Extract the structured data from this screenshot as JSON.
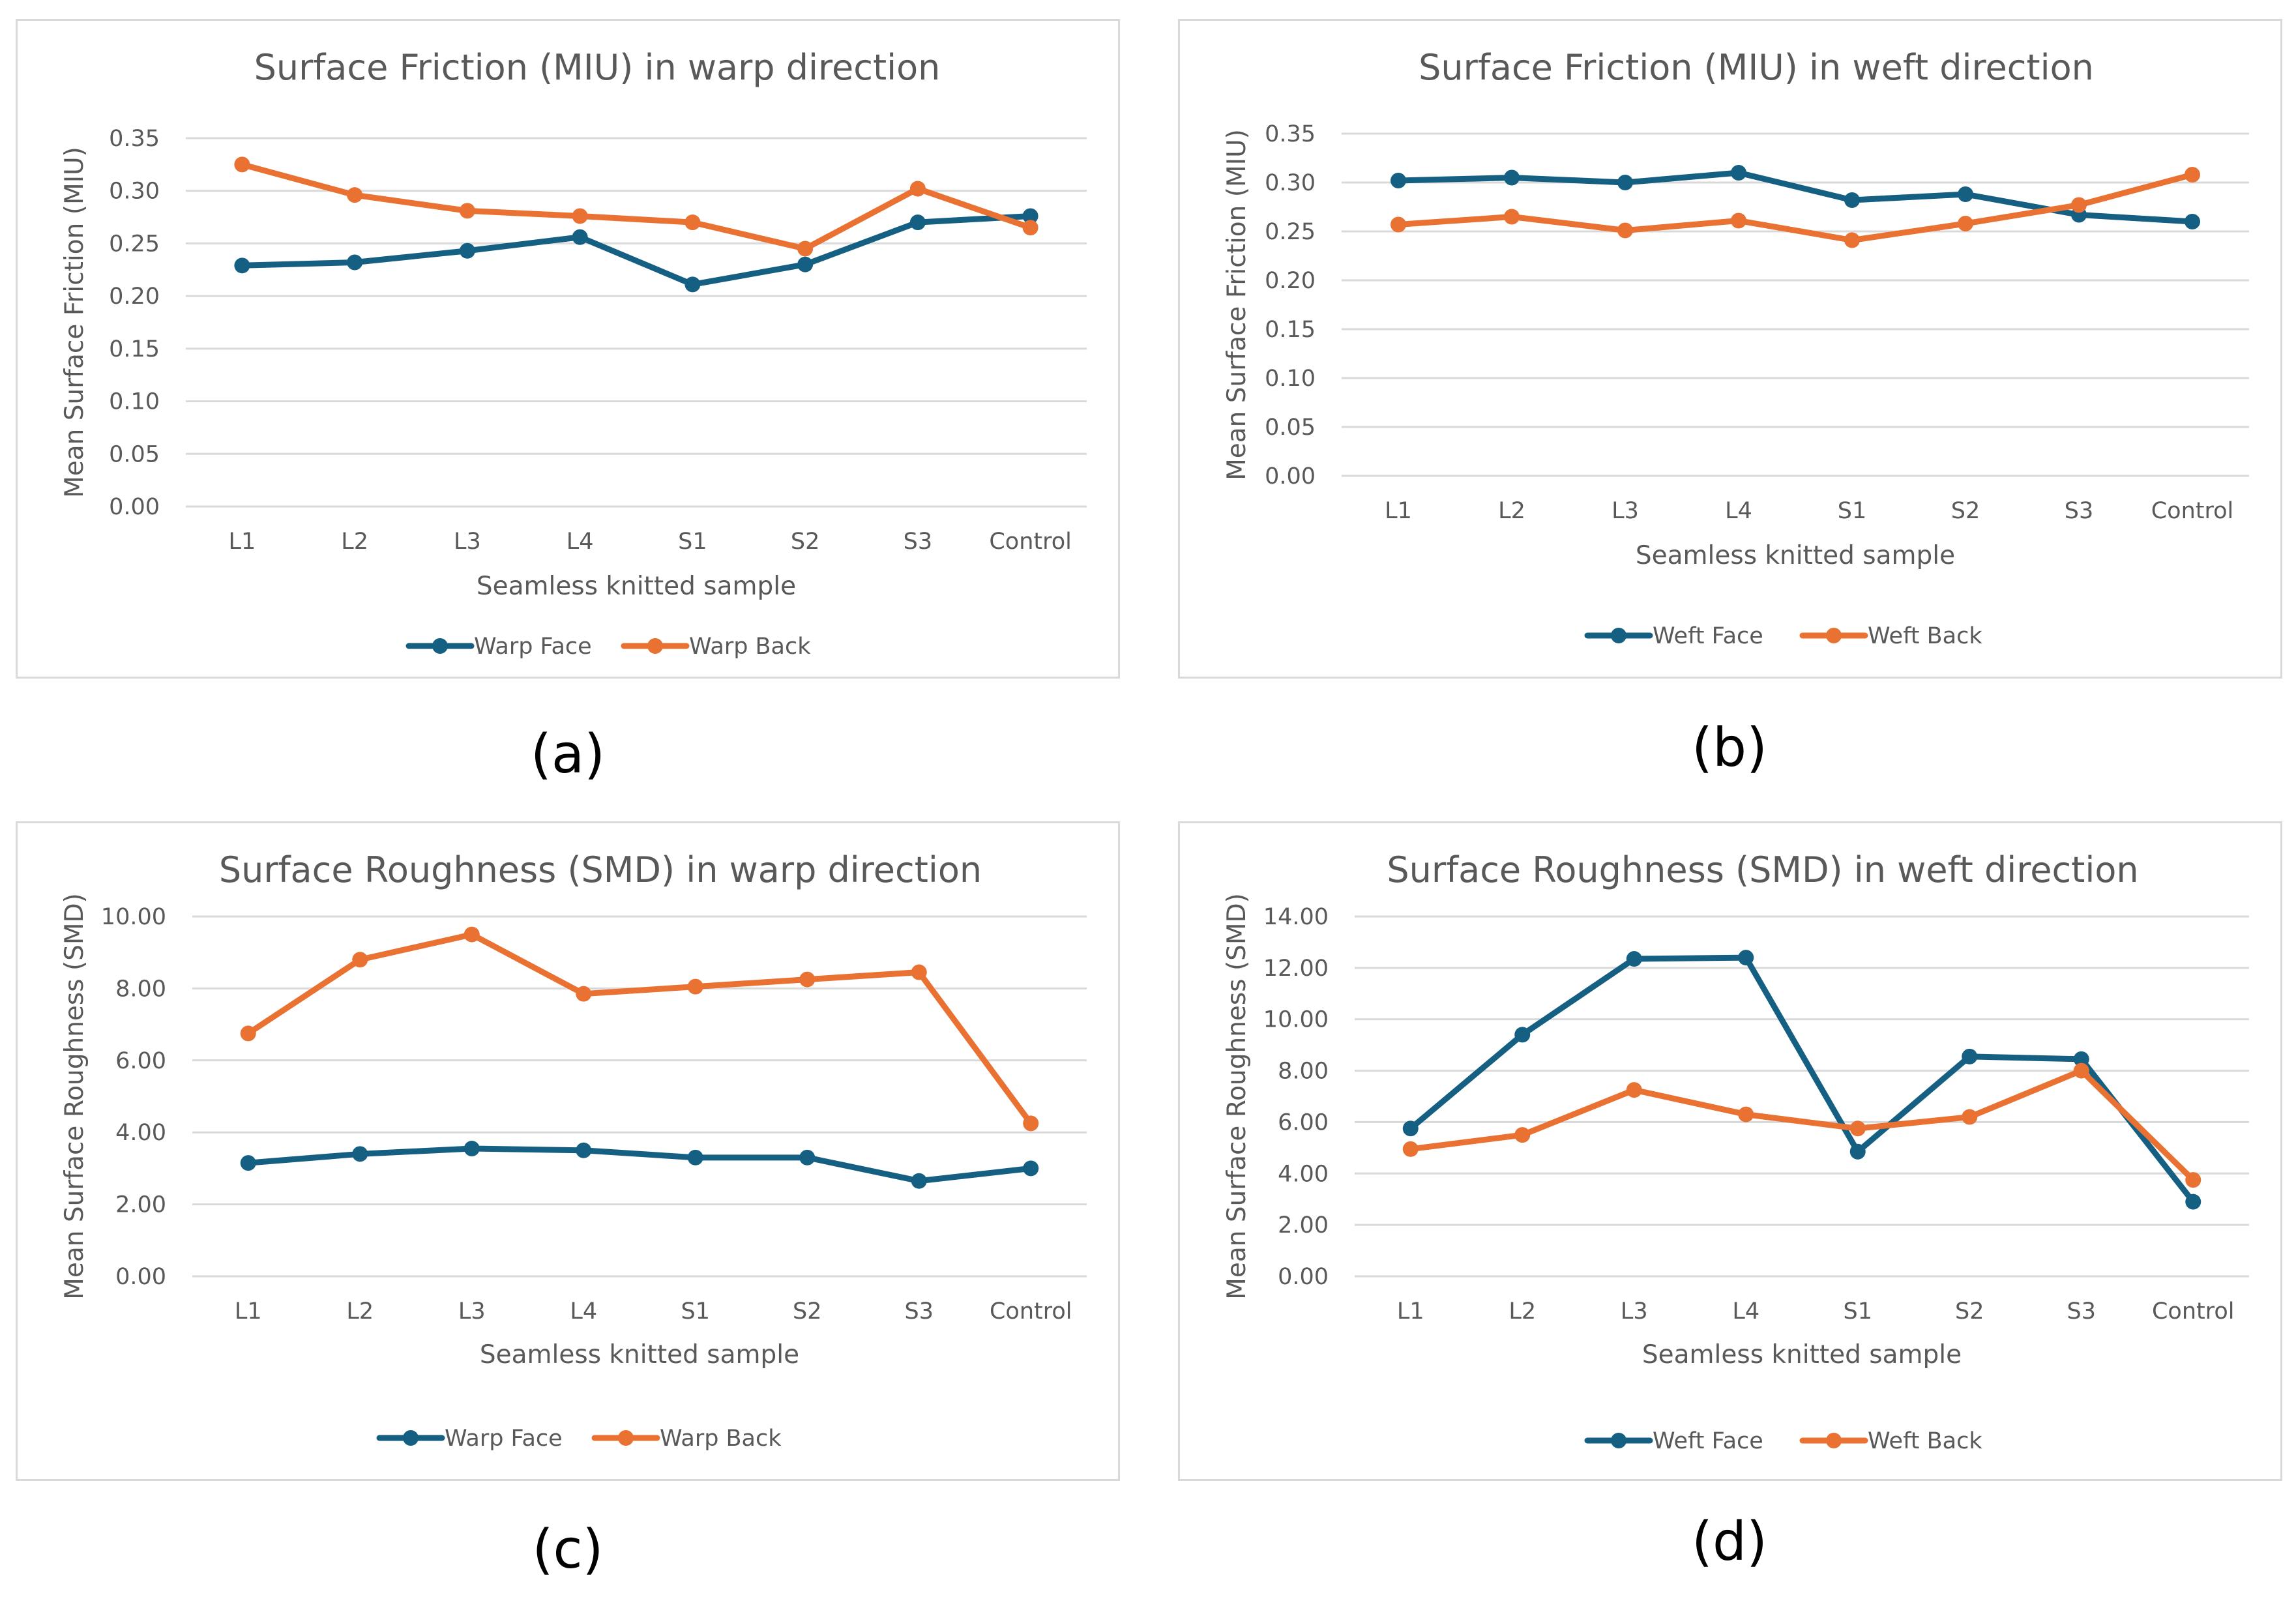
{
  "chart_data": [
    {
      "type": "line",
      "title": "Surface Friction (MIU) in warp direction",
      "xlabel": "Seamless knitted sample",
      "ylabel": "Mean Surface Friction (MIU)",
      "categories": [
        "L1",
        "L2",
        "L3",
        "L4",
        "S1",
        "S2",
        "S3",
        "Control"
      ],
      "ylim": [
        0,
        0.35
      ],
      "yticks": [
        "0.00",
        "0.05",
        "0.10",
        "0.15",
        "0.20",
        "0.25",
        "0.30",
        "0.35"
      ],
      "legend_position": "bottom",
      "series": [
        {
          "name": "Warp Face",
          "color": "#156082",
          "values": [
            0.229,
            0.232,
            0.243,
            0.256,
            0.211,
            0.23,
            0.27,
            0.276
          ]
        },
        {
          "name": "Warp Back",
          "color": "#e97132",
          "values": [
            0.325,
            0.296,
            0.281,
            0.276,
            0.27,
            0.245,
            0.302,
            0.265
          ]
        }
      ],
      "caption": "(a)"
    },
    {
      "type": "line",
      "title": "Surface Friction (MIU) in weft direction",
      "xlabel": "Seamless knitted sample",
      "ylabel": "Mean Surface Friction (MIU)",
      "categories": [
        "L1",
        "L2",
        "L3",
        "L4",
        "S1",
        "S2",
        "S3",
        "Control"
      ],
      "ylim": [
        0,
        0.35
      ],
      "yticks": [
        "0.00",
        "0.05",
        "0.10",
        "0.15",
        "0.20",
        "0.25",
        "0.30",
        "0.35"
      ],
      "legend_position": "bottom",
      "series": [
        {
          "name": "Weft Face",
          "color": "#156082",
          "values": [
            0.302,
            0.305,
            0.3,
            0.31,
            0.282,
            0.288,
            0.267,
            0.26
          ]
        },
        {
          "name": "Weft Back",
          "color": "#e97132",
          "values": [
            0.257,
            0.265,
            0.251,
            0.261,
            0.241,
            0.258,
            0.277,
            0.308
          ]
        }
      ],
      "caption": "(b)"
    },
    {
      "type": "line",
      "title": "Surface Roughness (SMD) in warp direction",
      "xlabel": "Seamless knitted sample",
      "ylabel": "Mean Surface Roughness (SMD)",
      "categories": [
        "L1",
        "L2",
        "L3",
        "L4",
        "S1",
        "S2",
        "S3",
        "Control"
      ],
      "ylim": [
        0,
        10
      ],
      "yticks": [
        "0.00",
        "2.00",
        "4.00",
        "6.00",
        "8.00",
        "10.00"
      ],
      "legend_position": "bottom",
      "series": [
        {
          "name": "Warp Face",
          "color": "#156082",
          "values": [
            3.15,
            3.4,
            3.55,
            3.5,
            3.3,
            3.3,
            2.65,
            3.0
          ]
        },
        {
          "name": "Warp Back",
          "color": "#e97132",
          "values": [
            6.75,
            8.8,
            9.5,
            7.85,
            8.05,
            8.25,
            8.45,
            4.25
          ]
        }
      ],
      "caption": "(c)"
    },
    {
      "type": "line",
      "title": "Surface Roughness (SMD) in weft direction",
      "xlabel": "Seamless knitted sample",
      "ylabel": "Mean Surface Roughness (SMD)",
      "categories": [
        "L1",
        "L2",
        "L3",
        "L4",
        "S1",
        "S2",
        "S3",
        "Control"
      ],
      "ylim": [
        0,
        14
      ],
      "yticks": [
        "0.00",
        "2.00",
        "4.00",
        "6.00",
        "8.00",
        "10.00",
        "12.00",
        "14.00"
      ],
      "legend_position": "bottom",
      "series": [
        {
          "name": "Weft Face",
          "color": "#156082",
          "values": [
            5.75,
            9.4,
            12.35,
            12.4,
            4.85,
            8.55,
            8.45,
            2.9
          ]
        },
        {
          "name": "Weft Back",
          "color": "#e97132",
          "values": [
            4.95,
            5.5,
            7.25,
            6.3,
            5.75,
            6.2,
            8.0,
            3.75
          ]
        }
      ],
      "caption": "(d)"
    }
  ]
}
